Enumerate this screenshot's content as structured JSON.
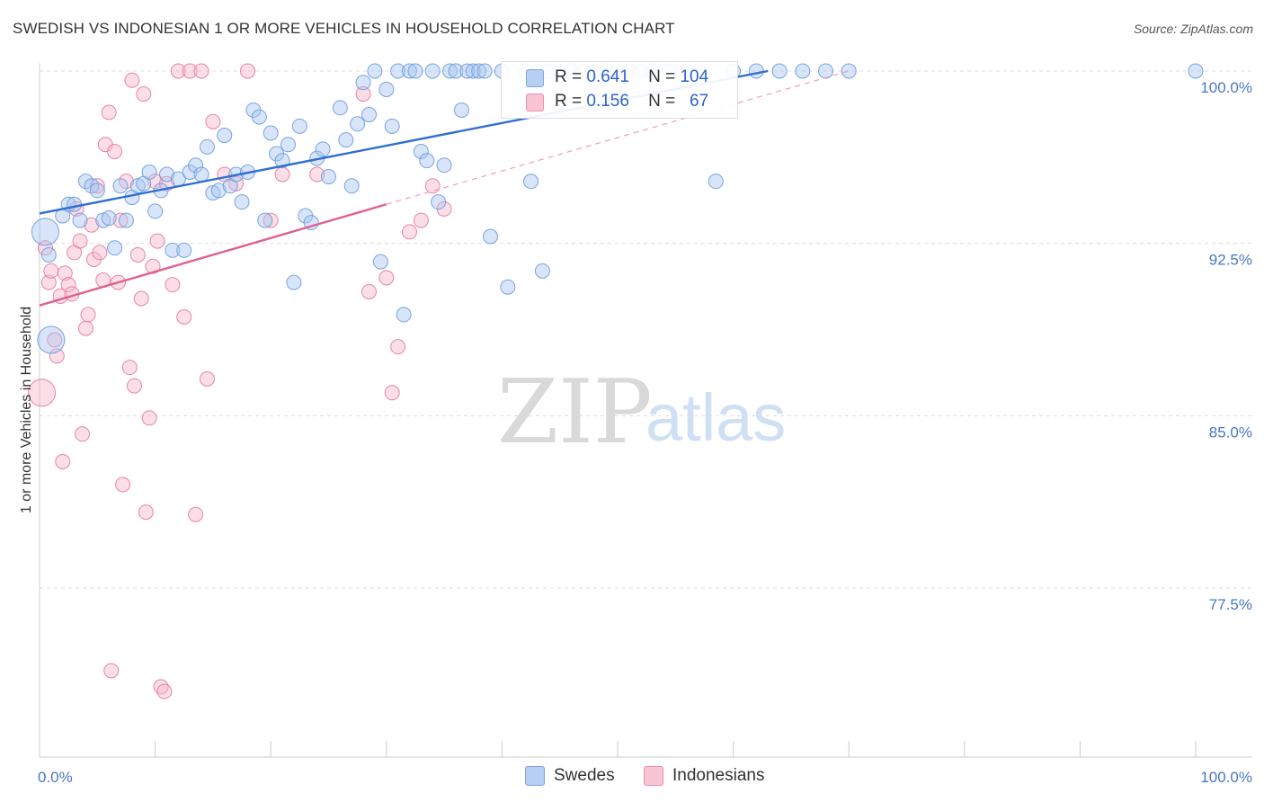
{
  "title": "SWEDISH VS INDONESIAN 1 OR MORE VEHICLES IN HOUSEHOLD CORRELATION CHART",
  "source": "Source: ZipAtlas.com",
  "watermark": {
    "zip": "ZIP",
    "atlas": "atlas"
  },
  "legend": {
    "swedes": {
      "r_label": "R =",
      "r_value": "0.641",
      "n_label": "N =",
      "n_value": "104",
      "color": "#a9c6f0"
    },
    "indonesians": {
      "r_label": "R =",
      "r_value": "0.156",
      "n_label": "N =",
      "n_value": "67",
      "color": "#f7b6c8"
    }
  },
  "bottom_legend": {
    "swedes": "Swedes",
    "indonesians": "Indonesians"
  },
  "chart_data": {
    "type": "scatter",
    "title": "SWEDISH VS INDONESIAN 1 OR MORE VEHICLES IN HOUSEHOLD CORRELATION CHART",
    "xlabel": "",
    "ylabel": "1 or more Vehicles in Household",
    "xlim": [
      0,
      100
    ],
    "ylim": [
      70.0,
      101.0
    ],
    "x_tick_labels": {
      "min": "0.0%",
      "max": "100.0%"
    },
    "y_ticks": [
      {
        "value": 100.0,
        "label": "100.0%"
      },
      {
        "value": 92.5,
        "label": "92.5%"
      },
      {
        "value": 85.0,
        "label": "85.0%"
      },
      {
        "value": 77.5,
        "label": "77.5%"
      }
    ],
    "grid": true,
    "legend_position": "top-center",
    "series": [
      {
        "name": "Swedes",
        "color": "#6a9be0",
        "fill": "#a9c6f0",
        "trend": {
          "x0": 0,
          "y0": 93.8,
          "x1": 63,
          "y1": 100.0,
          "dashed_to": null
        },
        "points": [
          [
            0.5,
            93.0
          ],
          [
            0.8,
            92.0
          ],
          [
            1.0,
            88.3
          ],
          [
            2.0,
            93.7
          ],
          [
            2.5,
            94.2
          ],
          [
            3.0,
            94.2
          ],
          [
            3.5,
            93.5
          ],
          [
            4.0,
            95.2
          ],
          [
            4.5,
            95.0
          ],
          [
            5.0,
            94.8
          ],
          [
            5.5,
            93.5
          ],
          [
            6.0,
            93.6
          ],
          [
            6.5,
            92.3
          ],
          [
            7.0,
            95.0
          ],
          [
            7.5,
            93.5
          ],
          [
            8.0,
            94.5
          ],
          [
            8.5,
            95.0
          ],
          [
            9.0,
            95.1
          ],
          [
            9.5,
            95.6
          ],
          [
            10.0,
            93.9
          ],
          [
            10.5,
            94.8
          ],
          [
            11.0,
            95.5
          ],
          [
            11.5,
            92.2
          ],
          [
            12.0,
            95.3
          ],
          [
            12.5,
            92.2
          ],
          [
            13.0,
            95.6
          ],
          [
            13.5,
            95.9
          ],
          [
            14.0,
            95.5
          ],
          [
            14.5,
            96.7
          ],
          [
            15.0,
            94.7
          ],
          [
            15.5,
            94.8
          ],
          [
            16.0,
            97.2
          ],
          [
            16.5,
            95.0
          ],
          [
            17.0,
            95.5
          ],
          [
            17.5,
            94.3
          ],
          [
            18.0,
            95.6
          ],
          [
            18.5,
            98.3
          ],
          [
            19.0,
            98.0
          ],
          [
            19.5,
            93.5
          ],
          [
            20.0,
            97.3
          ],
          [
            20.5,
            96.4
          ],
          [
            21.0,
            96.1
          ],
          [
            21.5,
            96.8
          ],
          [
            22.0,
            90.8
          ],
          [
            22.5,
            97.6
          ],
          [
            23.0,
            93.7
          ],
          [
            23.5,
            93.4
          ],
          [
            24.0,
            96.2
          ],
          [
            24.5,
            96.6
          ],
          [
            25.0,
            95.4
          ],
          [
            26.0,
            98.4
          ],
          [
            26.5,
            97.0
          ],
          [
            27.0,
            95.0
          ],
          [
            27.5,
            97.7
          ],
          [
            28.0,
            99.5
          ],
          [
            28.5,
            98.1
          ],
          [
            29.0,
            100.0
          ],
          [
            29.5,
            91.7
          ],
          [
            30.0,
            99.2
          ],
          [
            30.5,
            97.6
          ],
          [
            31.0,
            100.0
          ],
          [
            31.5,
            89.4
          ],
          [
            32.0,
            100.0
          ],
          [
            32.5,
            100.0
          ],
          [
            33.0,
            96.5
          ],
          [
            33.5,
            96.1
          ],
          [
            34.0,
            100.0
          ],
          [
            34.5,
            94.3
          ],
          [
            35.0,
            95.9
          ],
          [
            35.5,
            100.0
          ],
          [
            36.0,
            100.0
          ],
          [
            36.5,
            98.3
          ],
          [
            37.0,
            100.0
          ],
          [
            37.5,
            100.0
          ],
          [
            38.0,
            100.0
          ],
          [
            38.5,
            100.0
          ],
          [
            39.0,
            92.8
          ],
          [
            40.0,
            100.0
          ],
          [
            40.5,
            90.6
          ],
          [
            42.0,
            100.0
          ],
          [
            42.5,
            95.2
          ],
          [
            43.0,
            100.0
          ],
          [
            43.5,
            91.3
          ],
          [
            44.0,
            100.0
          ],
          [
            45.0,
            100.0
          ],
          [
            46.0,
            100.0
          ],
          [
            47.0,
            100.0
          ],
          [
            48.0,
            100.0
          ],
          [
            49.0,
            100.0
          ],
          [
            50.0,
            100.0
          ],
          [
            51.0,
            100.0
          ],
          [
            52.0,
            100.0
          ],
          [
            53.0,
            100.0
          ],
          [
            54.5,
            100.0
          ],
          [
            56.0,
            100.0
          ],
          [
            57.0,
            100.0
          ],
          [
            58.5,
            95.2
          ],
          [
            60.0,
            100.0
          ],
          [
            62.0,
            100.0
          ],
          [
            64.0,
            100.0
          ],
          [
            66.0,
            100.0
          ],
          [
            68.0,
            100.0
          ],
          [
            70.0,
            100.0
          ],
          [
            100.0,
            100.0
          ]
        ]
      },
      {
        "name": "Indonesians",
        "color": "#e57aa0",
        "fill": "#f7b6c8",
        "trend": {
          "x0": 0,
          "y0": 89.8,
          "x1": 30,
          "y1": 94.2,
          "dashed_to": [
            70,
            100.0
          ]
        },
        "points": [
          [
            0.2,
            86.0
          ],
          [
            0.5,
            92.3
          ],
          [
            0.8,
            90.8
          ],
          [
            1.0,
            91.3
          ],
          [
            1.3,
            88.3
          ],
          [
            1.5,
            87.6
          ],
          [
            1.8,
            90.2
          ],
          [
            2.0,
            83.0
          ],
          [
            2.2,
            91.2
          ],
          [
            2.5,
            90.7
          ],
          [
            2.8,
            90.3
          ],
          [
            3.0,
            92.1
          ],
          [
            3.2,
            94.0
          ],
          [
            3.5,
            92.6
          ],
          [
            3.7,
            84.2
          ],
          [
            4.0,
            88.8
          ],
          [
            4.2,
            89.4
          ],
          [
            4.5,
            93.3
          ],
          [
            4.7,
            91.8
          ],
          [
            5.0,
            95.0
          ],
          [
            5.2,
            92.1
          ],
          [
            5.5,
            90.9
          ],
          [
            5.7,
            96.8
          ],
          [
            6.0,
            98.2
          ],
          [
            6.2,
            73.9
          ],
          [
            6.5,
            96.5
          ],
          [
            6.8,
            90.8
          ],
          [
            7.0,
            93.5
          ],
          [
            7.2,
            82.0
          ],
          [
            7.5,
            95.2
          ],
          [
            7.8,
            87.1
          ],
          [
            8.0,
            99.6
          ],
          [
            8.2,
            86.3
          ],
          [
            8.5,
            92.0
          ],
          [
            8.8,
            90.1
          ],
          [
            9.0,
            99.0
          ],
          [
            9.2,
            80.8
          ],
          [
            9.5,
            84.9
          ],
          [
            9.8,
            91.5
          ],
          [
            10.0,
            95.2
          ],
          [
            10.2,
            92.6
          ],
          [
            10.5,
            73.2
          ],
          [
            10.8,
            73.0
          ],
          [
            11.0,
            95.1
          ],
          [
            11.5,
            90.7
          ],
          [
            12.0,
            100.0
          ],
          [
            12.5,
            89.3
          ],
          [
            13.0,
            100.0
          ],
          [
            13.5,
            80.7
          ],
          [
            14.0,
            100.0
          ],
          [
            14.5,
            86.6
          ],
          [
            15.0,
            97.8
          ],
          [
            16.0,
            95.5
          ],
          [
            17.0,
            95.1
          ],
          [
            18.0,
            100.0
          ],
          [
            20.0,
            93.5
          ],
          [
            21.0,
            95.5
          ],
          [
            24.0,
            95.5
          ],
          [
            28.0,
            99.0
          ],
          [
            28.5,
            90.4
          ],
          [
            30.0,
            91.0
          ],
          [
            30.5,
            86.0
          ],
          [
            31.0,
            88.0
          ],
          [
            32.0,
            93.0
          ],
          [
            33.0,
            93.5
          ],
          [
            34.0,
            95.0
          ],
          [
            35.0,
            94.0
          ]
        ]
      }
    ]
  }
}
